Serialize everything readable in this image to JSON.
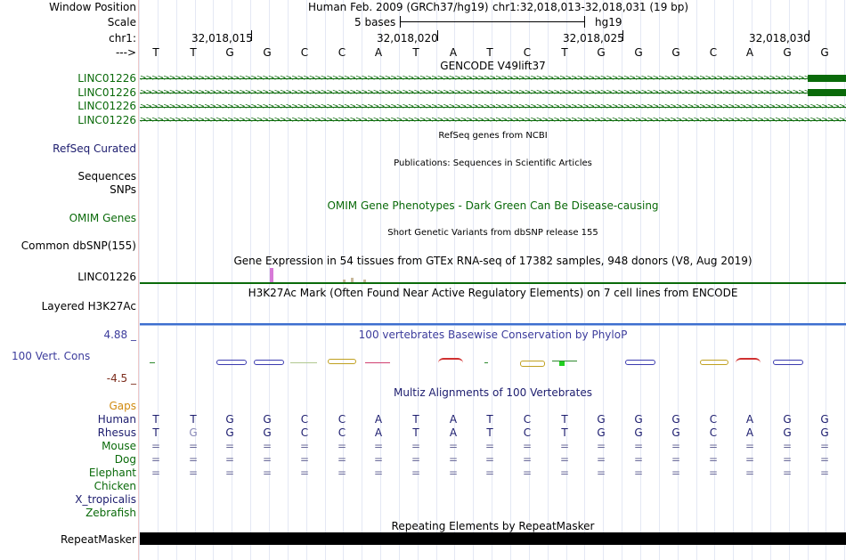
{
  "labels": {
    "window_position": "Window Position",
    "scale": "Scale",
    "chr": "chr1:",
    "strand": "--->",
    "gencode_transcripts": [
      "LINC01226",
      "LINC01226",
      "LINC01226",
      "LINC01226"
    ],
    "refseq": "RefSeq Curated",
    "sequences": "Sequences",
    "snps": "SNPs",
    "omim": "OMIM Genes",
    "dbsnp": "Common dbSNP(155)",
    "gtex_gene": "LINC01226",
    "h3k27ac": "Layered H3K27Ac",
    "cons_max": "4.88 _",
    "cons_label": "100 Vert. Cons",
    "cons_min": "-4.5 _",
    "gaps": "Gaps",
    "species": [
      "Human",
      "Rhesus",
      "Mouse",
      "Dog",
      "Elephant",
      "Chicken",
      "X_tropicalis",
      "Zebrafish"
    ],
    "repeatmasker": "RepeatMasker"
  },
  "header": {
    "assembly": "Human Feb. 2009 (GRCh37/hg19)",
    "position": "chr1:32,018,013-32,018,031 (19 bp)",
    "scale_text": "5 bases",
    "scale_db": "hg19",
    "coords": [
      "32,018,015",
      "32,018,020",
      "32,018,025",
      "32,018,030"
    ]
  },
  "sequence": [
    "T",
    "T",
    "G",
    "G",
    "C",
    "C",
    "A",
    "T",
    "A",
    "T",
    "C",
    "T",
    "G",
    "G",
    "G",
    "C",
    "A",
    "G",
    "G"
  ],
  "tracks": {
    "gencode_title": "GENCODE V49lift37",
    "refseq_title": "RefSeq genes from NCBI",
    "pubs_title": "Publications: Sequences in Scientific Articles",
    "omim_title": "OMIM Gene Phenotypes - Dark Green Can Be Disease-causing",
    "dbsnp_title": "Short Genetic Variants from dbSNP release 155",
    "gtex_title": "Gene Expression in 54 tissues from GTEx RNA-seq of 17382 samples, 948 donors (V8, Aug 2019)",
    "h3k27ac_title": "H3K27Ac Mark (Often Found Near Active Regulatory Elements) on 7 cell lines from ENCODE",
    "phylop_title": "100 vertebrates Basewise Conservation by PhyloP",
    "multiz_title": "Multiz Alignments of 100 Vertebrates",
    "repeat_title": "Repeating Elements by RepeatMasker"
  },
  "alignments": {
    "human": [
      "T",
      "T",
      "G",
      "G",
      "C",
      "C",
      "A",
      "T",
      "A",
      "T",
      "C",
      "T",
      "G",
      "G",
      "G",
      "C",
      "A",
      "G",
      "G"
    ],
    "rhesus": [
      "T",
      "G",
      "G",
      "G",
      "C",
      "C",
      "A",
      "T",
      "A",
      "T",
      "C",
      "T",
      "G",
      "G",
      "G",
      "C",
      "A",
      "G",
      "G"
    ],
    "mouse": [
      "=",
      "=",
      "=",
      "=",
      "=",
      "=",
      "=",
      "=",
      "=",
      "=",
      "=",
      "=",
      "=",
      "=",
      "=",
      "=",
      "=",
      "=",
      "="
    ],
    "dog": [
      "=",
      "=",
      "=",
      "=",
      "=",
      "=",
      "=",
      "=",
      "=",
      "=",
      "=",
      "=",
      "=",
      "=",
      "=",
      "=",
      "=",
      "=",
      "="
    ],
    "elephant": [
      "=",
      "=",
      "=",
      "=",
      "=",
      "=",
      "=",
      "=",
      "=",
      "=",
      "=",
      "=",
      "=",
      "=",
      "=",
      "=",
      "=",
      "=",
      "="
    ]
  },
  "colors": {
    "gene_green": "#0a6a0a",
    "label_blue": "#1c1c6e",
    "cons_blue": "#3c3c9c",
    "gaps_orange": "#d08a10",
    "cons_min_red": "#7c2c1c"
  }
}
